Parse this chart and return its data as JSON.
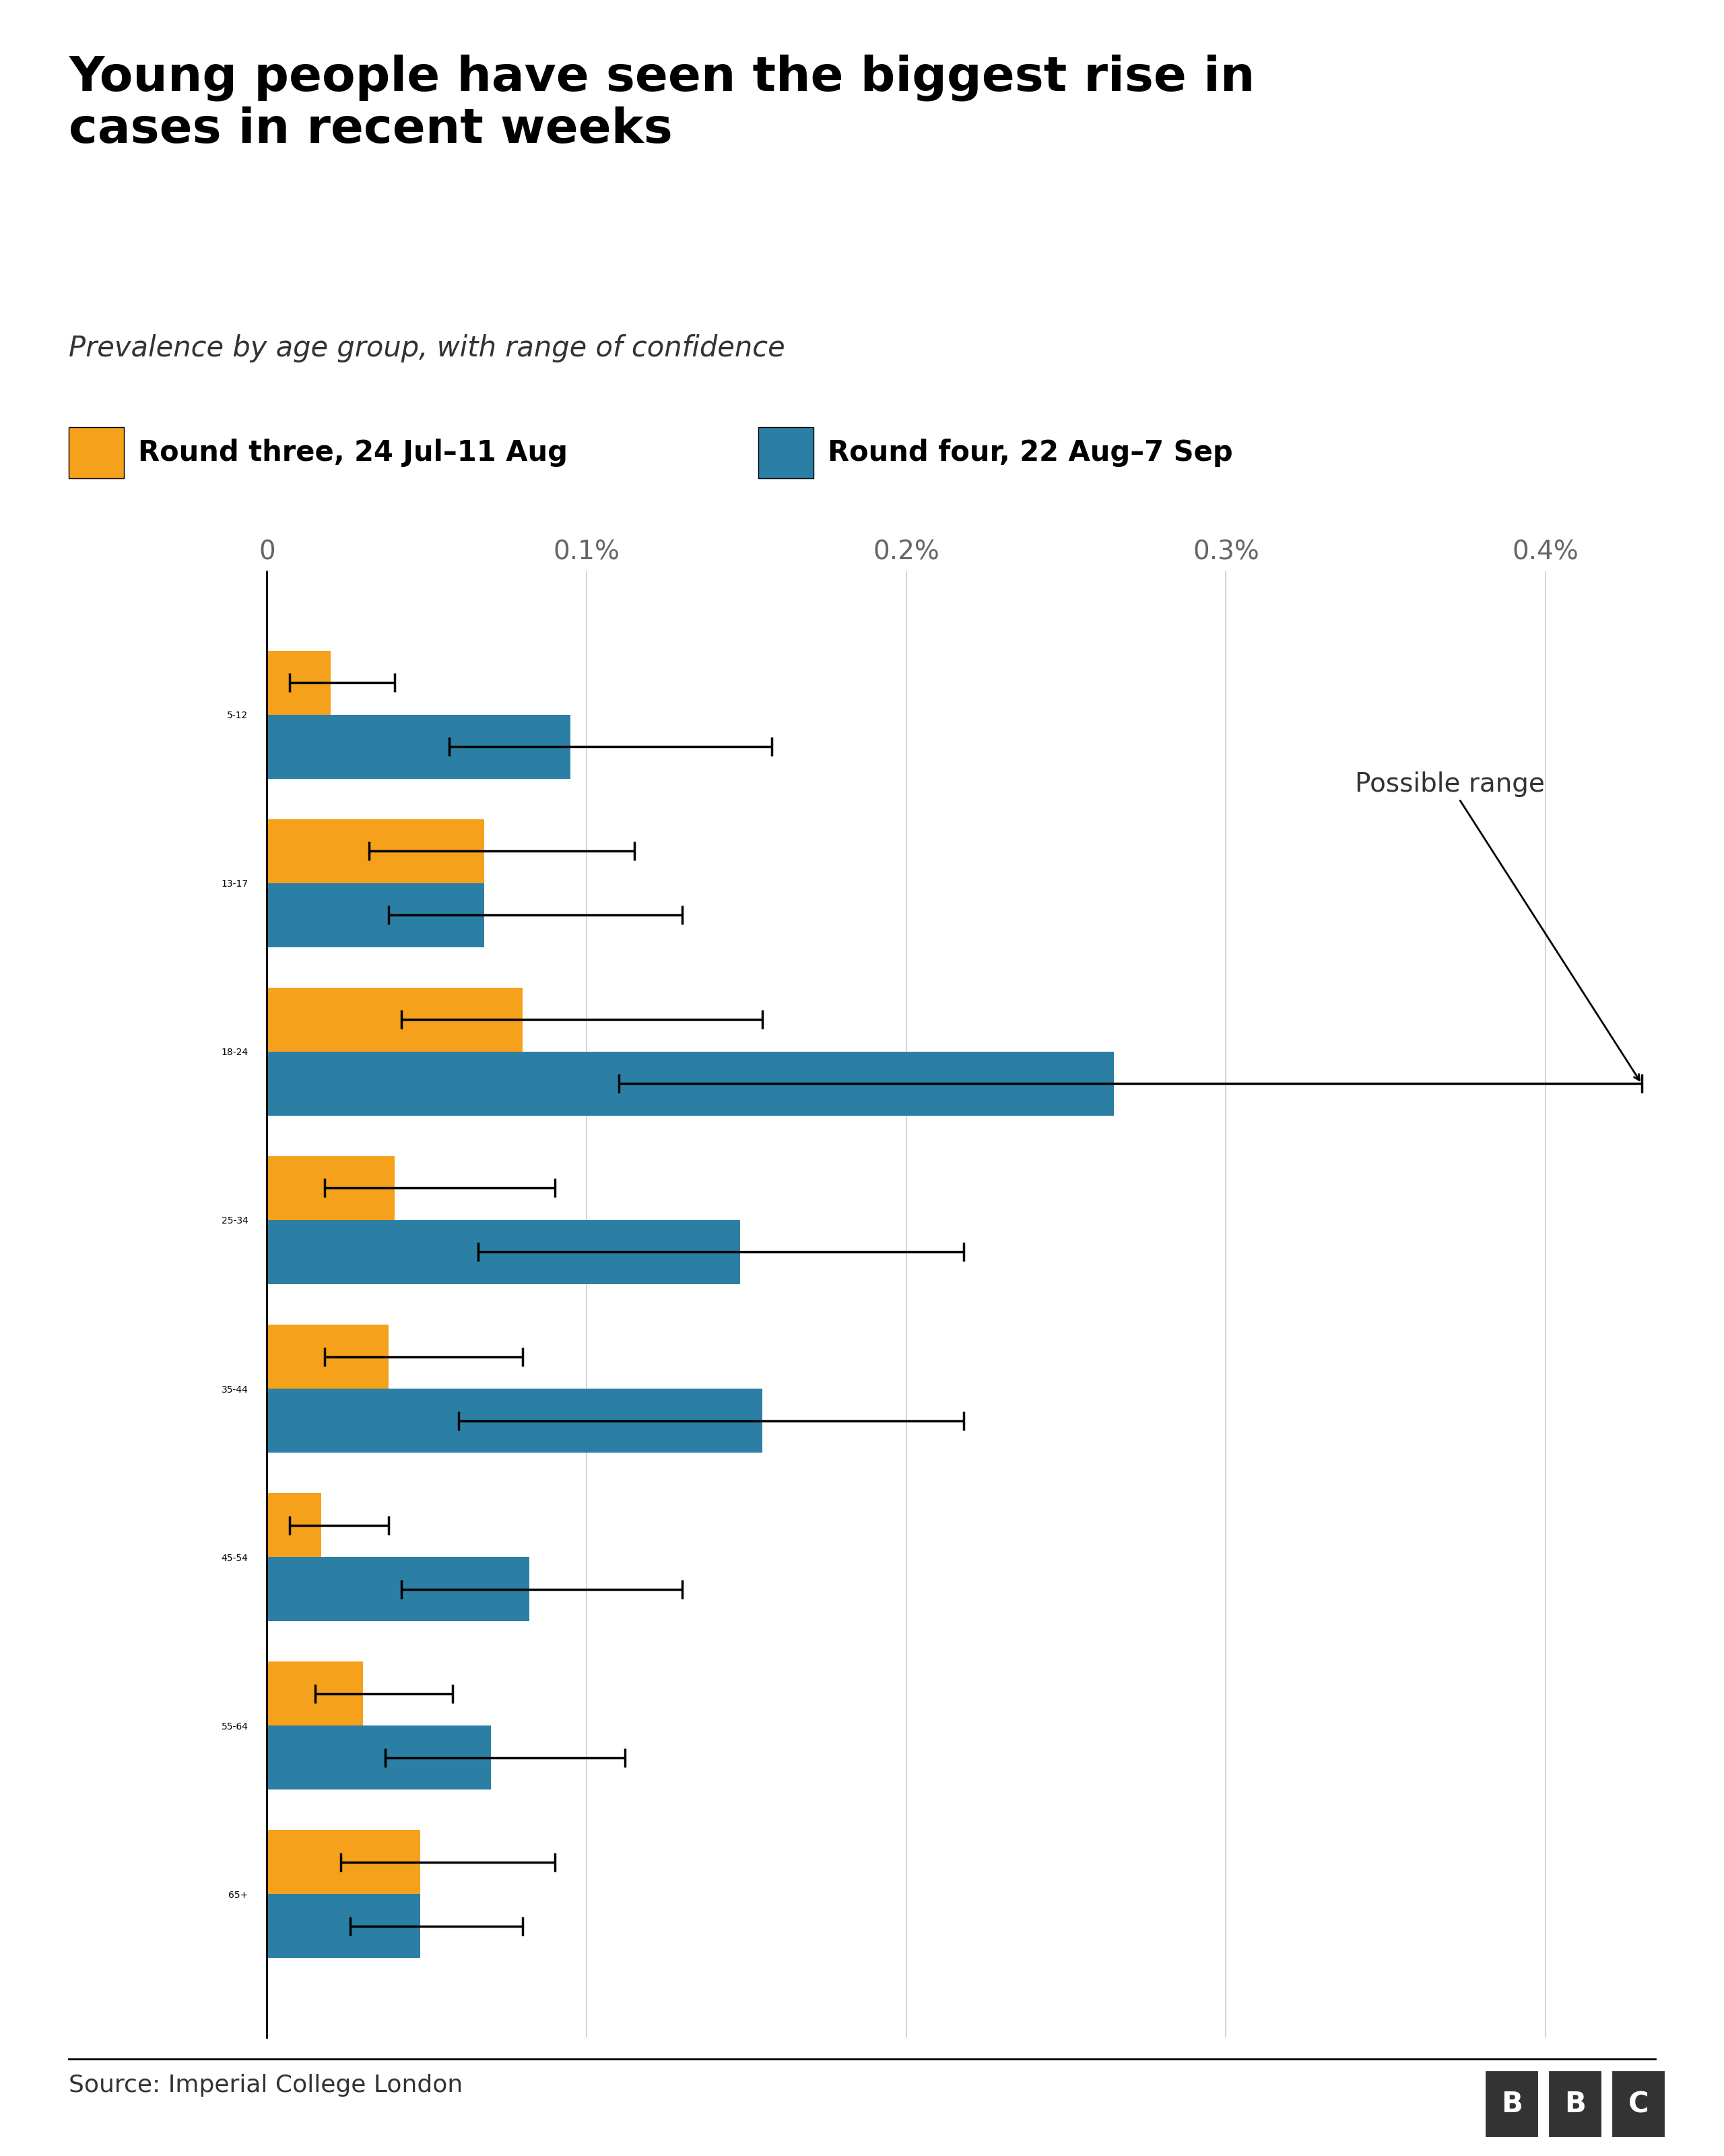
{
  "title": "Young people have seen the biggest rise in\ncases in recent weeks",
  "subtitle": "Prevalence by age group, with range of confidence",
  "source": "Source: Imperial College London",
  "legend_round3": "Round three, 24 Jul–11 Aug",
  "legend_round4": "Round four, 22 Aug–7 Sep",
  "age_groups": [
    "5-12",
    "13-17",
    "18-24",
    "25-34",
    "35-44",
    "45-54",
    "55-64",
    "65+"
  ],
  "round3_values": [
    0.02,
    0.068,
    0.08,
    0.04,
    0.038,
    0.017,
    0.03,
    0.048
  ],
  "round3_err_low": [
    0.013,
    0.036,
    0.038,
    0.022,
    0.02,
    0.01,
    0.015,
    0.025
  ],
  "round3_err_high": [
    0.04,
    0.115,
    0.155,
    0.09,
    0.08,
    0.038,
    0.058,
    0.09
  ],
  "round4_values": [
    0.095,
    0.068,
    0.265,
    0.148,
    0.155,
    0.082,
    0.07,
    0.048
  ],
  "round4_err_low": [
    0.038,
    0.03,
    0.155,
    0.082,
    0.095,
    0.04,
    0.033,
    0.022
  ],
  "round4_err_high": [
    0.158,
    0.13,
    0.43,
    0.218,
    0.218,
    0.13,
    0.112,
    0.08
  ],
  "xlim": [
    -0.008,
    0.445
  ],
  "xticks": [
    0.0,
    0.1,
    0.2,
    0.3,
    0.4
  ],
  "xticklabels": [
    "0",
    "0.1%",
    "0.2%",
    "0.3%",
    "0.4%"
  ],
  "color_orange": "#F5A11C",
  "color_blue": "#2B7FA4",
  "background_color": "#FFFFFF",
  "annotation_text": "Possible range",
  "bar_height": 0.38,
  "title_fontsize": 52,
  "subtitle_fontsize": 30,
  "label_fontsize": 32,
  "tick_fontsize": 28,
  "legend_fontsize": 30,
  "source_fontsize": 26,
  "capsize": 10,
  "elinewidth": 2.5,
  "ecapthick": 2.5
}
